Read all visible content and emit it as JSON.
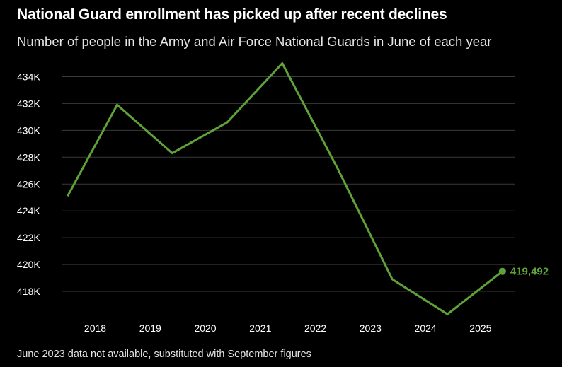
{
  "title": "National Guard enrollment has picked up after recent declines",
  "subtitle": "Number of people in the Army and Air Force National Guards in June of each year",
  "note": "June 2023 data not available, substituted with September figures",
  "colors": {
    "line": "#5fa23a",
    "grid": "#3a3a3a",
    "background": "#000000"
  },
  "chart_data": {
    "type": "line",
    "title": "National Guard enrollment has picked up after recent declines",
    "subtitle": "Number of people in the Army and Air Force National Guards in June of each year",
    "xlabel": "",
    "ylabel": "",
    "x_tick_labels": [
      "2018",
      "2019",
      "2020",
      "2021",
      "2022",
      "2023",
      "2024",
      "2025"
    ],
    "y_ticks": [
      418000,
      420000,
      422000,
      424000,
      426000,
      428000,
      430000,
      432000,
      434000
    ],
    "y_tick_labels": [
      "418K",
      "420K",
      "422K",
      "424K",
      "426K",
      "428K",
      "430K",
      "432K",
      "434K"
    ],
    "ylim": [
      416000,
      435500
    ],
    "xlim": [
      2017.1,
      2025.6
    ],
    "grid": true,
    "series": [
      {
        "color": "#5fa23a",
        "x": [
          2017.1,
          2018.0,
          2019.0,
          2020.0,
          2021.0,
          2022.0,
          2023.0,
          2024.0,
          2025.0
        ],
        "values": [
          425100,
          431900,
          428300,
          430600,
          435000,
          427200,
          418900,
          416300,
          419492
        ]
      }
    ],
    "end_label": "419,492"
  }
}
